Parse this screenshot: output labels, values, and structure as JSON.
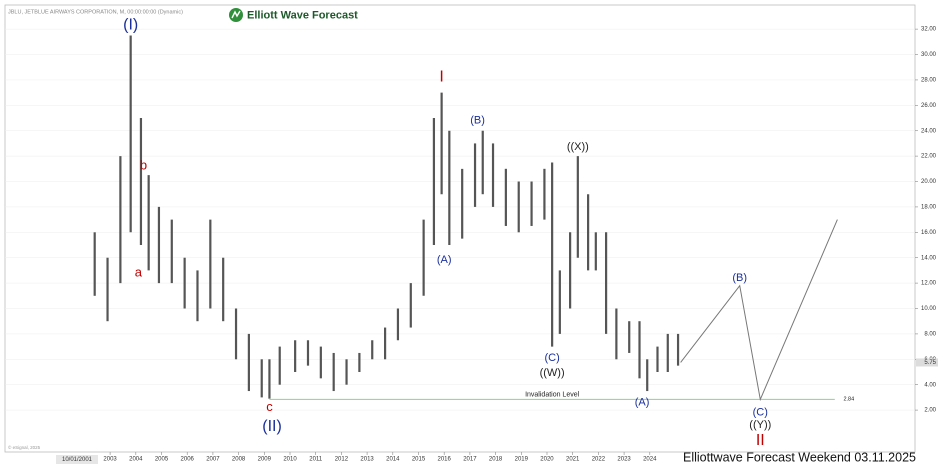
{
  "chart_data": {
    "type": "ohlc",
    "title": "JBLU, JETBLUE AIRWAYS CORPORATION, M, 00:00:00:00 (Dynamic)",
    "logo": "Elliott Wave Forecast",
    "footer": "Elliottwave Forecast Weekend  03.11.2025",
    "copyright": "© eSignal, 2025",
    "cursor_date": "10/01/2001",
    "color": "#555555",
    "x": [
      2002.4,
      2002.9,
      2003.4,
      2003.8,
      2004.2,
      2004.5,
      2004.9,
      2005.4,
      2005.9,
      2006.4,
      2006.9,
      2007.4,
      2007.9,
      2008.4,
      2008.9,
      2009.2,
      2009.6,
      2010.2,
      2010.7,
      2011.2,
      2011.7,
      2012.2,
      2012.7,
      2013.2,
      2013.7,
      2014.2,
      2014.7,
      2015.2,
      2015.6,
      2015.9,
      2016.2,
      2016.7,
      2017.2,
      2017.5,
      2017.9,
      2018.4,
      2018.9,
      2019.4,
      2019.9,
      2020.2,
      2020.5,
      2020.9,
      2021.2,
      2021.6,
      2021.9,
      2022.3,
      2022.7,
      2023.2,
      2023.6,
      2023.9,
      2024.3,
      2024.7,
      2025.1
    ],
    "high": [
      16,
      14,
      22,
      31.5,
      25,
      20.5,
      18,
      17,
      14,
      13,
      17,
      14,
      10,
      8,
      6,
      6,
      7,
      7.5,
      7.5,
      7,
      6.5,
      6,
      6.5,
      7.5,
      8.5,
      10,
      12,
      17,
      25,
      27,
      24,
      21,
      23,
      24,
      23,
      21,
      20,
      20,
      21,
      21.5,
      13,
      16,
      22,
      19,
      16,
      16,
      10,
      9,
      9,
      6,
      7,
      8,
      8
    ],
    "low": [
      11,
      9,
      12,
      16,
      15,
      13,
      12,
      12,
      10,
      9,
      10,
      9,
      6,
      3.5,
      3,
      2.9,
      4,
      5,
      5.5,
      4.5,
      3.5,
      4,
      5,
      6,
      6,
      7.5,
      8.5,
      11,
      15,
      19,
      15,
      15.5,
      18,
      19,
      18,
      16.5,
      16,
      16.5,
      17,
      7,
      8,
      10,
      14,
      13,
      13,
      8,
      6,
      6.5,
      4.5,
      3.5,
      5,
      5,
      5.5
    ],
    "last_price": 5.75,
    "projection": {
      "color": "#777777",
      "x": [
        2025.2,
        2027.5,
        2028.3,
        2031.3
      ],
      "values": [
        5.75,
        11.8,
        2.84,
        17
      ]
    },
    "invalidation": {
      "label": "Invalidation Level",
      "value": 2.84,
      "x": [
        2009.2,
        2031.2
      ],
      "color": "#8fd18f"
    },
    "annotations": [
      {
        "text": "(I)",
        "x": 2003.8,
        "y": 32.3,
        "color": "#1a2f9c",
        "size": "large"
      },
      {
        "text": "b",
        "x": 2004.3,
        "y": 21.2,
        "color": "#c00000",
        "size": "medium"
      },
      {
        "text": "a",
        "x": 2004.1,
        "y": 12.8,
        "color": "#c00000",
        "size": "medium"
      },
      {
        "text": "c",
        "x": 2009.2,
        "y": 2.2,
        "color": "#c00000",
        "size": "medium"
      },
      {
        "text": "(II)",
        "x": 2009.3,
        "y": 0.7,
        "color": "#1a2f9c",
        "size": "large"
      },
      {
        "text": "I",
        "x": 2015.9,
        "y": 28.2,
        "color": "#c00000",
        "size": "large"
      },
      {
        "text": "(A)",
        "x": 2016.0,
        "y": 13.8,
        "color": "#1a2f9c",
        "size": "small"
      },
      {
        "text": "(B)",
        "x": 2017.3,
        "y": 24.8,
        "color": "#1a2f9c",
        "size": "small"
      },
      {
        "text": "((X))",
        "x": 2021.2,
        "y": 22.7,
        "color": "#222222",
        "size": "small"
      },
      {
        "text": "(C)",
        "x": 2020.2,
        "y": 6.1,
        "color": "#1a2f9c",
        "size": "small"
      },
      {
        "text": "((W))",
        "x": 2020.2,
        "y": 4.9,
        "color": "#222222",
        "size": "small"
      },
      {
        "text": "(A)",
        "x": 2023.7,
        "y": 2.6,
        "color": "#1a2f9c",
        "size": "small"
      },
      {
        "text": "(B)",
        "x": 2027.5,
        "y": 12.4,
        "color": "#1a2f9c",
        "size": "small"
      },
      {
        "text": "(C)",
        "x": 2028.3,
        "y": 1.8,
        "color": "#1a2f9c",
        "size": "small"
      },
      {
        "text": "((Y))",
        "x": 2028.3,
        "y": 0.8,
        "color": "#222222",
        "size": "small"
      },
      {
        "text": "II",
        "x": 2028.3,
        "y": -0.4,
        "color": "#c00000",
        "size": "large"
      }
    ],
    "xlim": [
      1998.91,
      2034.32
    ],
    "xticks": [
      2003,
      2004,
      2005,
      2006,
      2007,
      2008,
      2009,
      2010,
      2011,
      2012,
      2013,
      2014,
      2015,
      2016,
      2017,
      2018,
      2019,
      2020,
      2021,
      2022,
      2023,
      2024
    ],
    "ylim": [
      -1.3,
      33.9
    ],
    "yticks": [
      {
        "value": 2,
        "label": "2.00"
      },
      {
        "value": 4,
        "label": "4.00"
      },
      {
        "value": 6,
        "label": "6.00"
      },
      {
        "value": 8,
        "label": "8.00"
      },
      {
        "value": 10,
        "label": "10.00"
      },
      {
        "value": 12,
        "label": "12.00"
      },
      {
        "value": 14,
        "label": "14.00"
      },
      {
        "value": 16,
        "label": "16.00"
      },
      {
        "value": 18,
        "label": "18.00"
      },
      {
        "value": 20,
        "label": "20.00"
      },
      {
        "value": 22,
        "label": "22.00"
      },
      {
        "value": 24,
        "label": "24.00"
      },
      {
        "value": 26,
        "label": "26.00"
      },
      {
        "value": 28,
        "label": "28.00"
      },
      {
        "value": 30,
        "label": "30.00"
      },
      {
        "value": 32,
        "label": "32.00"
      }
    ],
    "grid": true
  }
}
